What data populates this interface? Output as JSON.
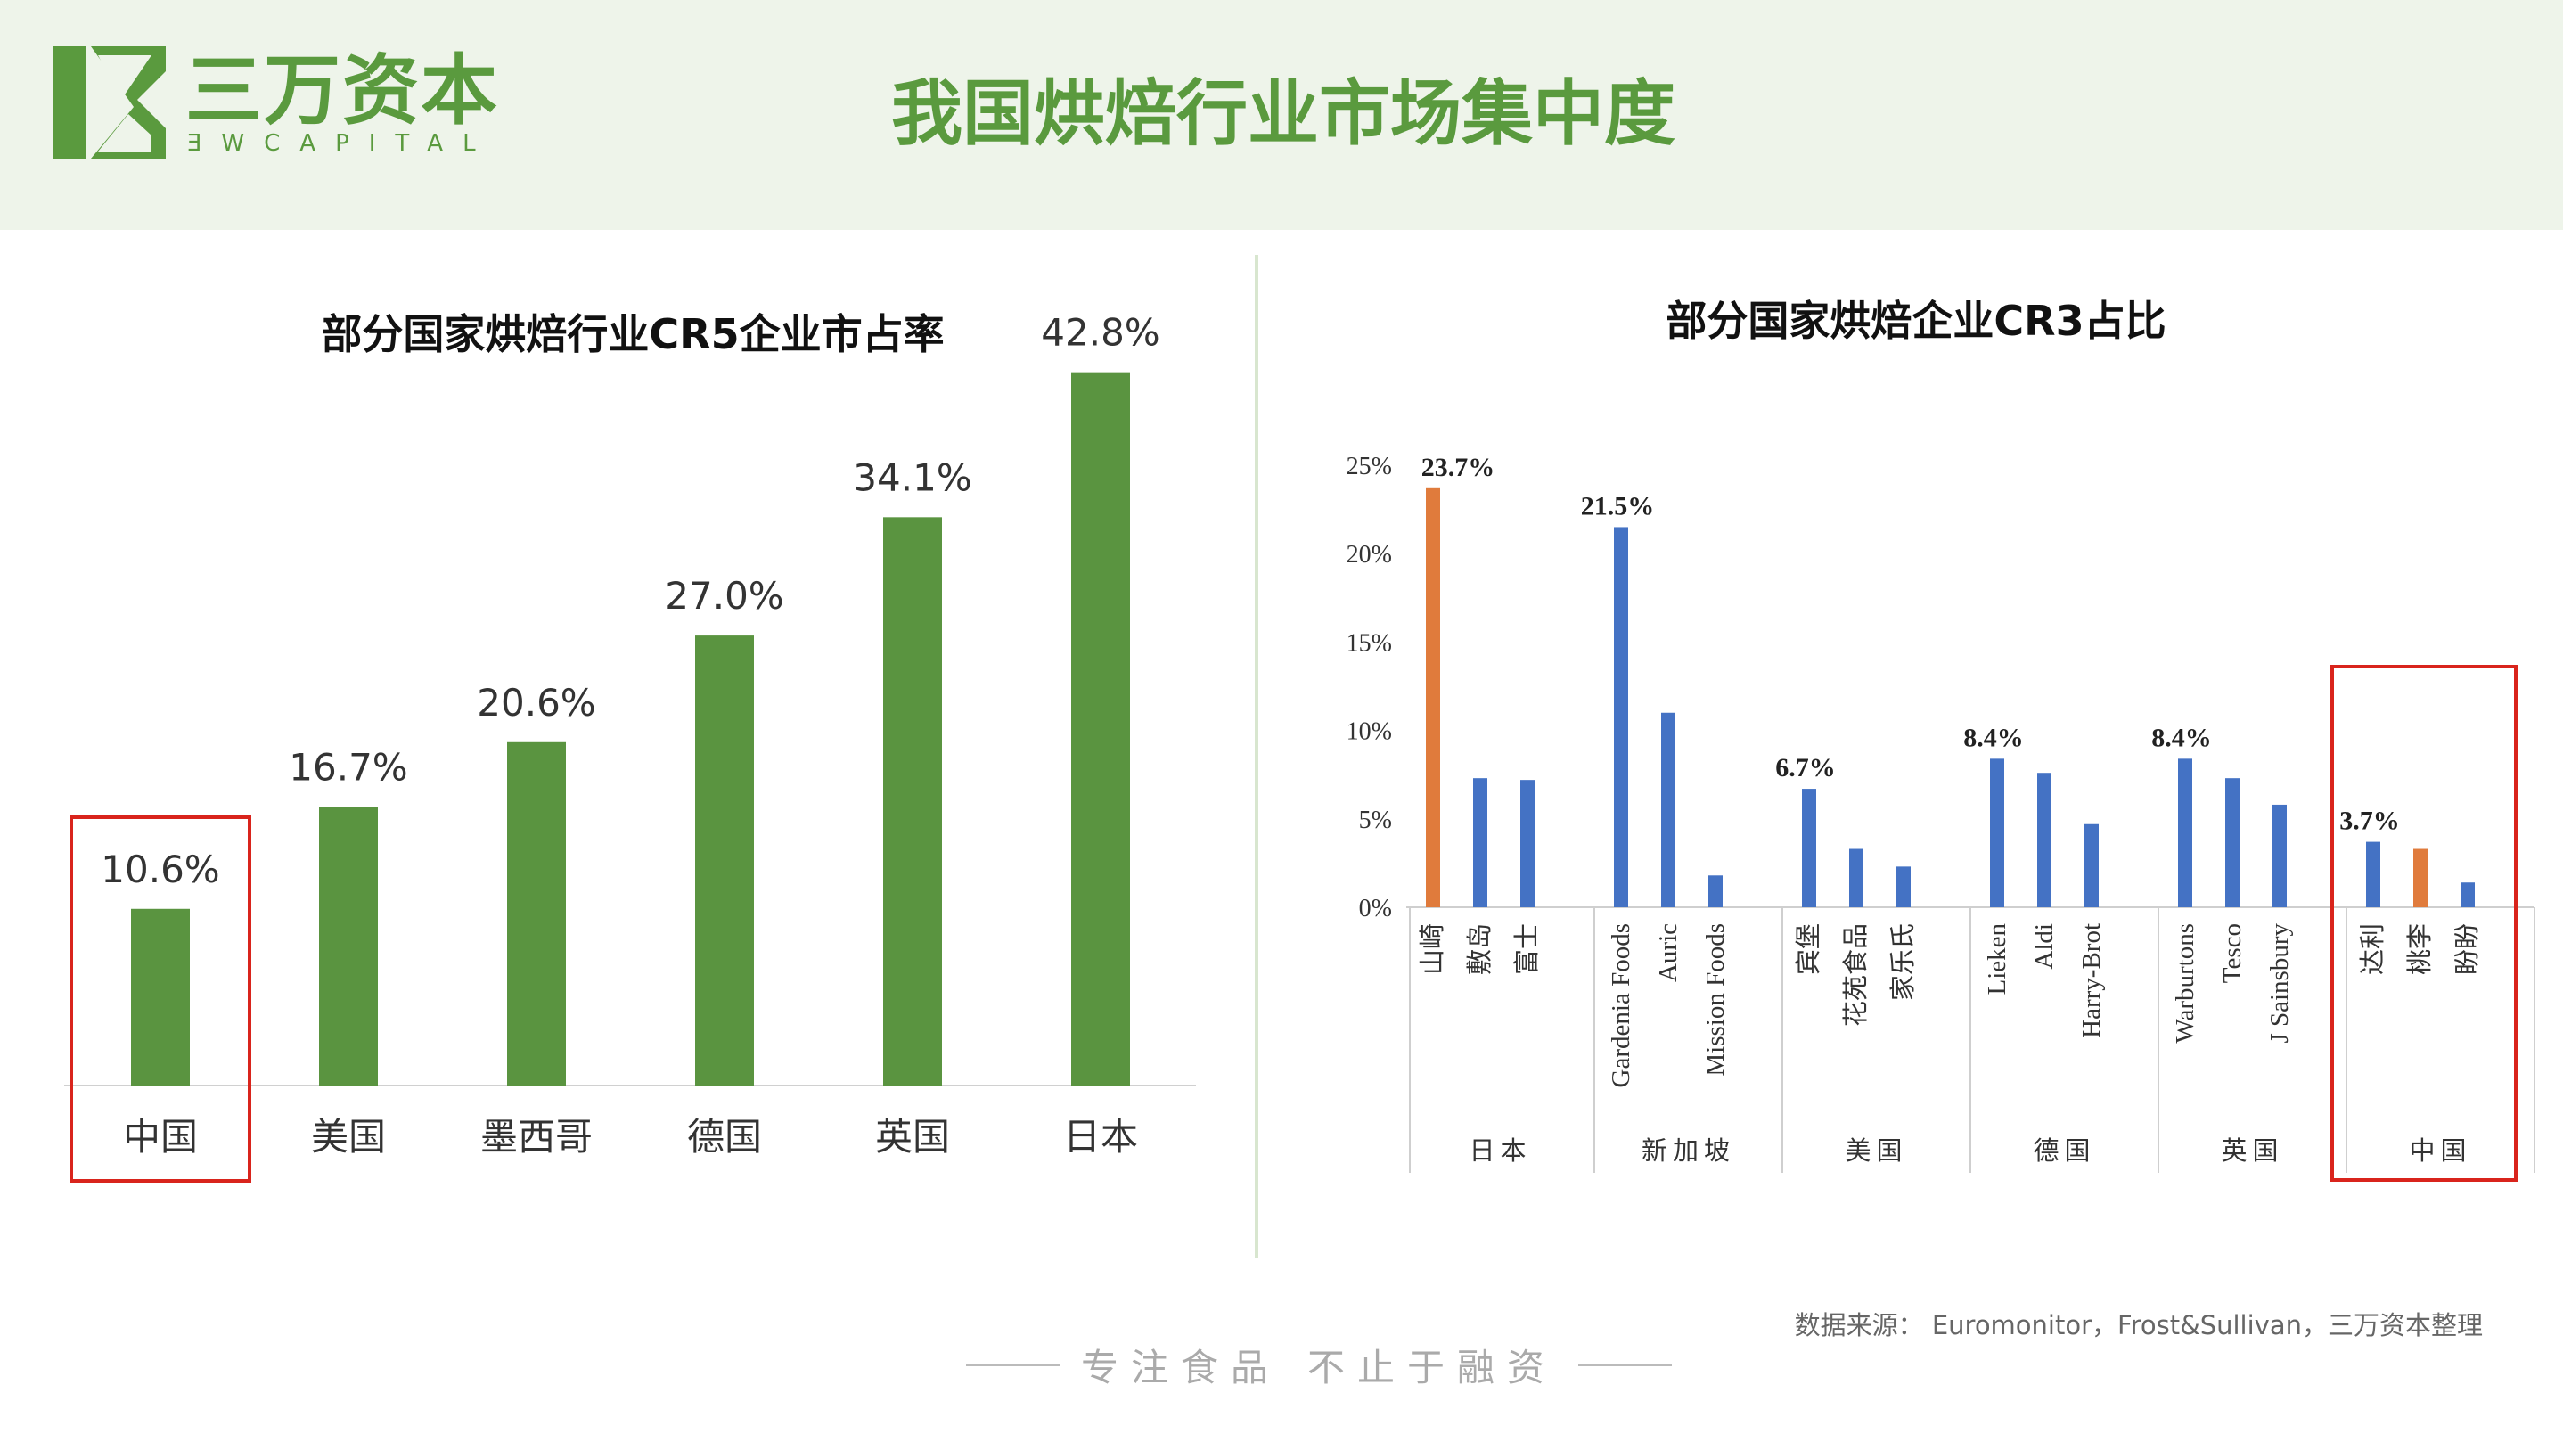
{
  "header": {
    "logo_cn": "三万资本",
    "logo_en": "ƎWCAPITAL",
    "title": "我国烘焙行业市场集中度",
    "brand_color": "#5a9a3e",
    "background_color": "#eef4ea"
  },
  "footer": {
    "source": "数据来源： Euromonitor，Frost&Sullivan，三万资本整理",
    "slogan_left": "专注食品",
    "slogan_right": "不止于融资"
  },
  "chart_data": [
    {
      "type": "bar",
      "title": "部分国家烘焙行业CR5企业市占率",
      "categories": [
        "中国",
        "美国",
        "墨西哥",
        "德国",
        "英国",
        "日本"
      ],
      "values": [
        10.6,
        16.7,
        20.6,
        27.0,
        34.1,
        42.8
      ],
      "data_labels": [
        "10.6%",
        "16.7%",
        "20.6%",
        "27.0%",
        "34.1%",
        "42.8%"
      ],
      "highlight_category": "中国",
      "bar_color": "#5a9440",
      "highlight_box_color": "#d9241c",
      "grid": false
    },
    {
      "type": "bar",
      "title": "部分国家烘焙企业CR3占比",
      "ylim": [
        0,
        25
      ],
      "yticks": [
        "0%",
        "5%",
        "10%",
        "15%",
        "20%",
        "25%"
      ],
      "groups": [
        {
          "name": "日本",
          "items": [
            {
              "label": "山崎",
              "value": 23.7,
              "highlight": true,
              "data_label": "23.7%"
            },
            {
              "label": "敷岛",
              "value": 7.3
            },
            {
              "label": "富士",
              "value": 7.2
            }
          ]
        },
        {
          "name": "新加坡",
          "items": [
            {
              "label": "Gardenia Foods",
              "value": 21.5,
              "data_label": "21.5%"
            },
            {
              "label": "Auric",
              "value": 11.0
            },
            {
              "label": "Mission Foods",
              "value": 1.8
            }
          ]
        },
        {
          "name": "美国",
          "items": [
            {
              "label": "宾堡",
              "value": 6.7,
              "data_label": "6.7%"
            },
            {
              "label": "花苑食品",
              "value": 3.3
            },
            {
              "label": "家乐氏",
              "value": 2.3
            }
          ]
        },
        {
          "name": "德国",
          "items": [
            {
              "label": "Lieken",
              "value": 8.4,
              "data_label": "8.4%"
            },
            {
              "label": "Aldi",
              "value": 7.6
            },
            {
              "label": "Harry-Brot",
              "value": 4.7
            }
          ]
        },
        {
          "name": "英国",
          "items": [
            {
              "label": "Warburtons",
              "value": 8.4,
              "data_label": "8.4%"
            },
            {
              "label": "Tesco",
              "value": 7.3
            },
            {
              "label": "J Sainsbury",
              "value": 5.8
            }
          ]
        },
        {
          "name": "中国",
          "items": [
            {
              "label": "达利",
              "value": 3.7,
              "data_label": "3.7%"
            },
            {
              "label": "桃李",
              "value": 3.3,
              "highlight": true
            },
            {
              "label": "盼盼",
              "value": 1.4
            }
          ]
        }
      ],
      "highlight_group": "中国",
      "bar_color": "#4472c4",
      "highlight_color": "#e07b3c",
      "highlight_box_color": "#d9241c",
      "grid": false
    }
  ]
}
